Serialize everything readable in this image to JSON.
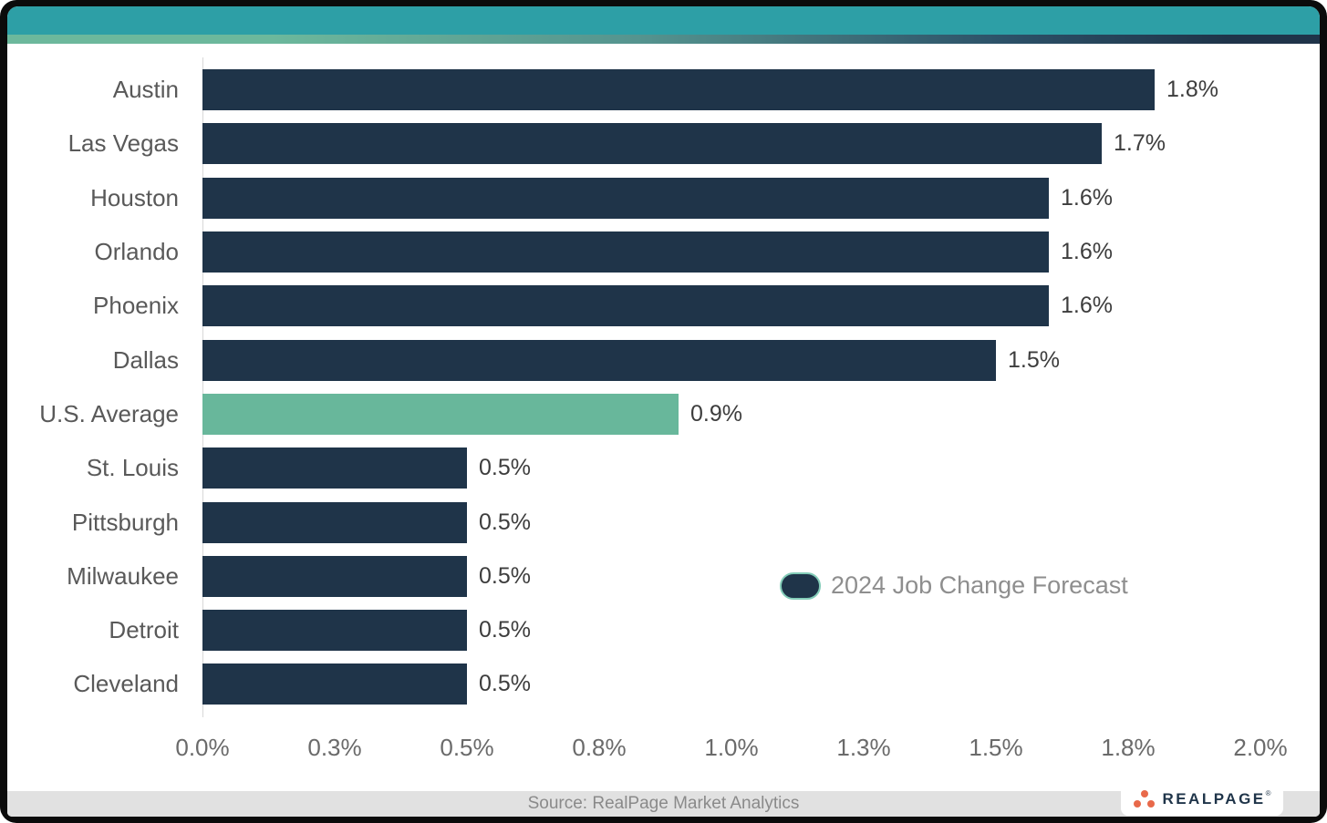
{
  "chart_data": {
    "type": "bar",
    "orientation": "horizontal",
    "categories": [
      "Austin",
      "Las Vegas",
      "Houston",
      "Orlando",
      "Phoenix",
      "Dallas",
      "U.S. Average",
      "St. Louis",
      "Pittsburgh",
      "Milwaukee",
      "Detroit",
      "Cleveland"
    ],
    "values": [
      1.8,
      1.7,
      1.6,
      1.6,
      1.6,
      1.5,
      0.9,
      0.5,
      0.5,
      0.5,
      0.5,
      0.5
    ],
    "value_labels": [
      "1.8%",
      "1.7%",
      "1.6%",
      "1.6%",
      "1.6%",
      "1.5%",
      "0.9%",
      "0.5%",
      "0.5%",
      "0.5%",
      "0.5%",
      "0.5%"
    ],
    "highlight_category": "U.S. Average",
    "xlim": [
      0,
      2.0
    ],
    "x_ticks": [
      "0.0%",
      "0.3%",
      "0.5%",
      "0.8%",
      "1.0%",
      "1.3%",
      "1.5%",
      "1.8%",
      "2.0%"
    ],
    "legend_label": "2024 Job Change Forecast",
    "legend_position": "inside-right",
    "grid": false,
    "title": "",
    "xlabel": "",
    "ylabel": ""
  },
  "colors": {
    "bar": "#1f3449",
    "highlight_bar": "#68b79b",
    "header_teal": "#2d9fa6",
    "strip_gradient_start": "#6cb89c",
    "strip_gradient_end": "#1f3449",
    "frame": "#0b0b0b",
    "legend_marker_border": "#83ccb8",
    "category_label_text": "#595959",
    "value_label_text": "#3d3d3d",
    "legend_text": "#8e8e8e",
    "source_text": "#8a8a8a",
    "logo_navy": "#1f3449",
    "logo_orange": "#e8694a"
  },
  "footer": {
    "source": "Source: RealPage Market Analytics",
    "logo_text": "REALPAGE",
    "logo_mark": "®"
  }
}
